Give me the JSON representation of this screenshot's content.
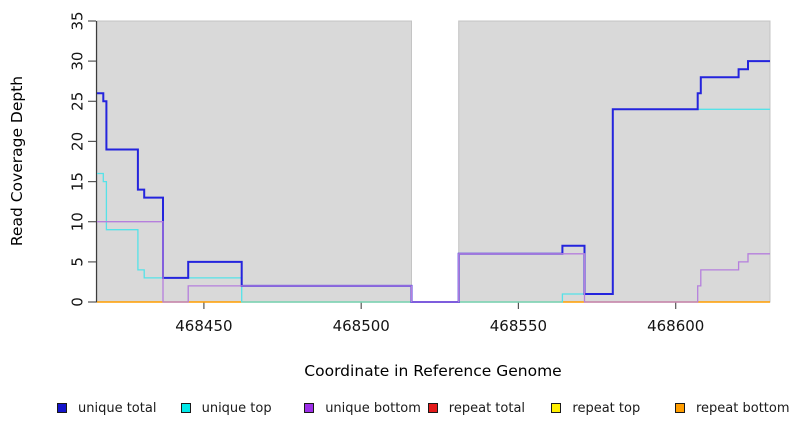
{
  "chart_data": {
    "type": "line",
    "subtype": "step-coverage",
    "title": "",
    "xlabel": "Coordinate in Reference Genome",
    "ylabel": "Read Coverage Depth",
    "xlim": [
      468416,
      468630
    ],
    "ylim": [
      0,
      35
    ],
    "x_ticks": [
      468450,
      468500,
      468550,
      468600
    ],
    "y_ticks": [
      0,
      5,
      10,
      15,
      20,
      25,
      30,
      35
    ],
    "panel_color": "#d9d9d9",
    "panel_border_color": "#c4c4c4",
    "gap_x": [
      468516,
      468531
    ],
    "grid": false,
    "legend_position": "bottom",
    "series": [
      {
        "name": "unique total",
        "color": "#2424dd",
        "width": 2,
        "steps": [
          [
            468416,
            26
          ],
          [
            468418,
            25
          ],
          [
            468419,
            19
          ],
          [
            468429,
            14
          ],
          [
            468431,
            13
          ],
          [
            468437,
            3
          ],
          [
            468445,
            5
          ],
          [
            468462,
            2
          ],
          [
            468516,
            0
          ],
          [
            468531,
            6
          ],
          [
            468564,
            7
          ],
          [
            468571,
            1
          ],
          [
            468580,
            24
          ],
          [
            468607,
            26
          ],
          [
            468608,
            28
          ],
          [
            468620,
            29
          ],
          [
            468623,
            30
          ]
        ]
      },
      {
        "name": "unique top",
        "color": "#55e2e8",
        "width": 1.3,
        "steps": [
          [
            468416,
            16
          ],
          [
            468418,
            15
          ],
          [
            468419,
            9
          ],
          [
            468429,
            4
          ],
          [
            468431,
            3
          ],
          [
            468462,
            0
          ],
          [
            468564,
            1
          ],
          [
            468580,
            24
          ]
        ]
      },
      {
        "name": "unique bottom",
        "color": "#b57fdd",
        "width": 1.3,
        "steps": [
          [
            468416,
            10
          ],
          [
            468437,
            0
          ],
          [
            468445,
            2
          ],
          [
            468516,
            0
          ],
          [
            468531,
            6
          ],
          [
            468571,
            0
          ],
          [
            468607,
            2
          ],
          [
            468608,
            4
          ],
          [
            468620,
            5
          ],
          [
            468623,
            6
          ]
        ]
      },
      {
        "name": "repeat total",
        "color": "#dd1111",
        "width": 1,
        "steps": [
          [
            468416,
            0
          ]
        ]
      },
      {
        "name": "repeat top",
        "color": "#f0f000",
        "width": 1,
        "steps": [
          [
            468416,
            0
          ]
        ]
      },
      {
        "name": "repeat bottom",
        "color": "#ff9e00",
        "width": 1.6,
        "steps": [
          [
            468416,
            0
          ]
        ]
      }
    ],
    "legend": [
      {
        "label": "unique total",
        "color": "#1414cc"
      },
      {
        "label": "unique top",
        "color": "#00e8e8"
      },
      {
        "label": "unique bottom",
        "color": "#9d2fe8"
      },
      {
        "label": "repeat total",
        "color": "#e31a1a"
      },
      {
        "label": "repeat top",
        "color": "#fff000"
      },
      {
        "label": "repeat bottom",
        "color": "#ff9d00"
      }
    ],
    "axis": {
      "y_axis_line_color": "#3c3c3c",
      "tick_color": "#555555",
      "tick_label_color": "#141414",
      "y_tick_labels_rotated": true
    }
  }
}
